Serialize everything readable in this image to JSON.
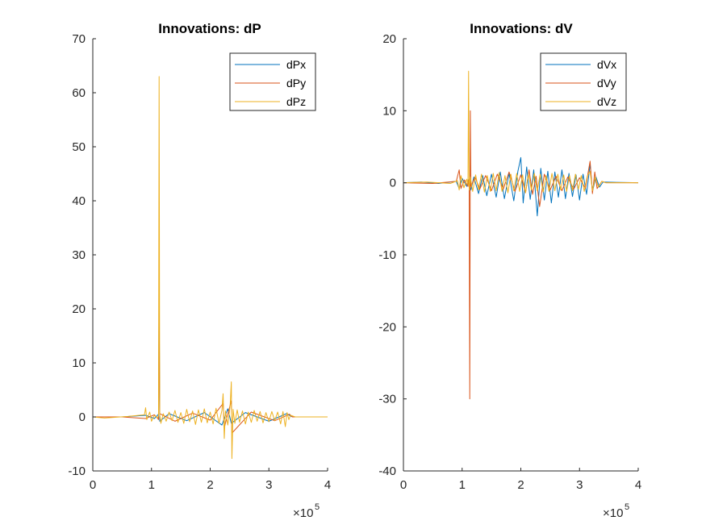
{
  "chart_data": [
    {
      "type": "line",
      "title": "Innovations: dP",
      "xlabel": "",
      "ylabel": "",
      "xlim": [
        0,
        400000
      ],
      "ylim": [
        -10,
        70
      ],
      "x_ticks": [
        0,
        100000,
        200000,
        300000,
        400000
      ],
      "x_tick_labels": [
        "0",
        "1",
        "2",
        "3",
        "4"
      ],
      "y_ticks": [
        -10,
        0,
        10,
        20,
        30,
        40,
        50,
        60,
        70
      ],
      "y_tick_labels": [
        "-10",
        "0",
        "10",
        "20",
        "30",
        "40",
        "50",
        "60",
        "70"
      ],
      "x_exponent_base": "×10",
      "x_exponent": "5",
      "legend_position": "top-right",
      "grid": false,
      "series": [
        {
          "name": "dPx",
          "color": "#0072BD",
          "points": [
            [
              0,
              0
            ],
            [
              50000,
              0
            ],
            [
              90000,
              0.3
            ],
            [
              105000,
              -0.3
            ],
            [
              112000,
              0.5
            ],
            [
              113000,
              25
            ],
            [
              114000,
              -0.8
            ],
            [
              130000,
              0.6
            ],
            [
              160000,
              -0.7
            ],
            [
              190000,
              0.8
            ],
            [
              220000,
              -1.5
            ],
            [
              230000,
              1.5
            ],
            [
              236000,
              -1.2
            ],
            [
              260000,
              0.8
            ],
            [
              300000,
              -0.8
            ],
            [
              330000,
              0.6
            ],
            [
              340000,
              0
            ],
            [
              400000,
              0
            ]
          ]
        },
        {
          "name": "dPy",
          "color": "#D95319",
          "points": [
            [
              0,
              0
            ],
            [
              50000,
              0
            ],
            [
              90000,
              -0.3
            ],
            [
              105000,
              0.4
            ],
            [
              112000,
              -0.5
            ],
            [
              113000,
              20
            ],
            [
              114000,
              0.6
            ],
            [
              140000,
              -0.8
            ],
            [
              170000,
              0.7
            ],
            [
              200000,
              -0.6
            ],
            [
              222000,
              2.5
            ],
            [
              224000,
              -2
            ],
            [
              236000,
              3
            ],
            [
              237000,
              -3
            ],
            [
              270000,
              0.9
            ],
            [
              310000,
              -0.7
            ],
            [
              335000,
              0.5
            ],
            [
              340000,
              0
            ],
            [
              400000,
              0
            ]
          ]
        },
        {
          "name": "dPz",
          "color": "#EDB120",
          "points": [
            [
              0,
              0
            ],
            [
              20000,
              -0.2
            ],
            [
              60000,
              0.1
            ],
            [
              88000,
              0.4
            ],
            [
              90000,
              1.7
            ],
            [
              92000,
              -0.5
            ],
            [
              97000,
              0.9
            ],
            [
              100000,
              -0.8
            ],
            [
              105000,
              0.3
            ],
            [
              110000,
              -0.2
            ],
            [
              112000,
              0.2
            ],
            [
              113000,
              63
            ],
            [
              114000,
              0.5
            ],
            [
              116000,
              -1.2
            ],
            [
              120000,
              0.6
            ],
            [
              125000,
              -0.8
            ],
            [
              130000,
              0.9
            ],
            [
              135000,
              -0.7
            ],
            [
              140000,
              1.2
            ],
            [
              145000,
              -1
            ],
            [
              150000,
              0.8
            ],
            [
              155000,
              -1.2
            ],
            [
              160000,
              1.4
            ],
            [
              165000,
              -0.9
            ],
            [
              170000,
              1.1
            ],
            [
              175000,
              -1.4
            ],
            [
              180000,
              1.3
            ],
            [
              185000,
              -1
            ],
            [
              190000,
              1.5
            ],
            [
              195000,
              -1.1
            ],
            [
              200000,
              0.9
            ],
            [
              205000,
              -1.3
            ],
            [
              210000,
              1.6
            ],
            [
              215000,
              -1.2
            ],
            [
              220000,
              1.2
            ],
            [
              222000,
              4.3
            ],
            [
              224000,
              -4
            ],
            [
              226000,
              1.1
            ],
            [
              230000,
              -1.5
            ],
            [
              234000,
              2.1
            ],
            [
              236000,
              6.5
            ],
            [
              237000,
              -7.7
            ],
            [
              239000,
              1.4
            ],
            [
              242000,
              -1.2
            ],
            [
              246000,
              1.3
            ],
            [
              250000,
              -1
            ],
            [
              255000,
              1.1
            ],
            [
              260000,
              -1.3
            ],
            [
              265000,
              0.9
            ],
            [
              270000,
              -1
            ],
            [
              275000,
              1.2
            ],
            [
              280000,
              -0.8
            ],
            [
              285000,
              1
            ],
            [
              290000,
              -1.1
            ],
            [
              295000,
              0.8
            ],
            [
              300000,
              -0.9
            ],
            [
              305000,
              1
            ],
            [
              310000,
              -0.7
            ],
            [
              315000,
              0.9
            ],
            [
              320000,
              -1.3
            ],
            [
              324000,
              1
            ],
            [
              328000,
              -1.8
            ],
            [
              331000,
              0.8
            ],
            [
              334000,
              -0.5
            ],
            [
              337000,
              0.3
            ],
            [
              345000,
              0
            ],
            [
              400000,
              0
            ]
          ]
        }
      ]
    },
    {
      "type": "line",
      "title": "Innovations: dV",
      "xlabel": "",
      "ylabel": "",
      "xlim": [
        0,
        400000
      ],
      "ylim": [
        -40,
        20
      ],
      "x_ticks": [
        0,
        100000,
        200000,
        300000,
        400000
      ],
      "x_tick_labels": [
        "0",
        "1",
        "2",
        "3",
        "4"
      ],
      "y_ticks": [
        -40,
        -30,
        -20,
        -10,
        0,
        10,
        20
      ],
      "y_tick_labels": [
        "-40",
        "-30",
        "-20",
        "-10",
        "0",
        "10",
        "20"
      ],
      "x_exponent_base": "×10",
      "x_exponent": "5",
      "legend_position": "top-right",
      "grid": false,
      "series": [
        {
          "name": "dVx",
          "color": "#0072BD",
          "points": [
            [
              0,
              0
            ],
            [
              30000,
              0.1
            ],
            [
              60000,
              -0.1
            ],
            [
              90000,
              0.2
            ],
            [
              95000,
              -0.8
            ],
            [
              100000,
              0.6
            ],
            [
              108000,
              -0.5
            ],
            [
              112000,
              0.5
            ],
            [
              115000,
              -1
            ],
            [
              120000,
              0.8
            ],
            [
              128000,
              -1.5
            ],
            [
              135000,
              1
            ],
            [
              142000,
              -1.8
            ],
            [
              150000,
              1.2
            ],
            [
              158000,
              -2
            ],
            [
              165000,
              1.5
            ],
            [
              172000,
              -2.2
            ],
            [
              180000,
              1.3
            ],
            [
              188000,
              -2.5
            ],
            [
              195000,
              1.6
            ],
            [
              200000,
              3.5
            ],
            [
              204000,
              -2.8
            ],
            [
              210000,
              2.2
            ],
            [
              216000,
              -2.3
            ],
            [
              222000,
              1.8
            ],
            [
              228000,
              -4.6
            ],
            [
              234000,
              2
            ],
            [
              240000,
              -2.4
            ],
            [
              246000,
              1.6
            ],
            [
              252000,
              -2.8
            ],
            [
              258000,
              1.5
            ],
            [
              264000,
              -2
            ],
            [
              270000,
              1.8
            ],
            [
              276000,
              -2.2
            ],
            [
              282000,
              1.3
            ],
            [
              288000,
              -1.9
            ],
            [
              294000,
              1.1
            ],
            [
              300000,
              -2.4
            ],
            [
              306000,
              1.2
            ],
            [
              312000,
              -1.6
            ],
            [
              318000,
              2.6
            ],
            [
              322000,
              -1.2
            ],
            [
              328000,
              0.8
            ],
            [
              334000,
              -0.6
            ],
            [
              340000,
              0.1
            ],
            [
              400000,
              0
            ]
          ]
        },
        {
          "name": "dVy",
          "color": "#D95319",
          "points": [
            [
              0,
              0
            ],
            [
              50000,
              -0.1
            ],
            [
              90000,
              0.2
            ],
            [
              95000,
              1.8
            ],
            [
              98000,
              -0.8
            ],
            [
              104000,
              0.4
            ],
            [
              110000,
              -0.5
            ],
            [
              112000,
              0.5
            ],
            [
              113000,
              -30
            ],
            [
              114000,
              10
            ],
            [
              115000,
              -0.5
            ],
            [
              122000,
              0.8
            ],
            [
              130000,
              -0.9
            ],
            [
              140000,
              1
            ],
            [
              150000,
              -1.1
            ],
            [
              160000,
              1.2
            ],
            [
              170000,
              -0.9
            ],
            [
              180000,
              1.5
            ],
            [
              190000,
              -1.2
            ],
            [
              200000,
              1.1
            ],
            [
              208000,
              -1.4
            ],
            [
              214000,
              1.8
            ],
            [
              220000,
              -1.6
            ],
            [
              226000,
              0.9
            ],
            [
              232000,
              -3.3
            ],
            [
              240000,
              1.2
            ],
            [
              250000,
              -1
            ],
            [
              260000,
              0.9
            ],
            [
              270000,
              -1.1
            ],
            [
              280000,
              0.8
            ],
            [
              290000,
              -0.9
            ],
            [
              300000,
              0.7
            ],
            [
              310000,
              -0.8
            ],
            [
              318000,
              3
            ],
            [
              322000,
              -1.5
            ],
            [
              326000,
              1.5
            ],
            [
              330000,
              -0.8
            ],
            [
              338000,
              0.2
            ],
            [
              345000,
              0
            ],
            [
              400000,
              0
            ]
          ]
        },
        {
          "name": "dVz",
          "color": "#EDB120",
          "points": [
            [
              0,
              0
            ],
            [
              40000,
              0.1
            ],
            [
              80000,
              -0.1
            ],
            [
              92000,
              0.3
            ],
            [
              95000,
              -1
            ],
            [
              98000,
              1
            ],
            [
              103000,
              -0.7
            ],
            [
              108000,
              0.5
            ],
            [
              110000,
              -0.3
            ],
            [
              111000,
              15.5
            ],
            [
              112000,
              -1
            ],
            [
              114000,
              0.8
            ],
            [
              118000,
              -1.2
            ],
            [
              123000,
              1.1
            ],
            [
              128000,
              -1
            ],
            [
              133000,
              1.2
            ],
            [
              138000,
              -1.3
            ],
            [
              143000,
              1
            ],
            [
              148000,
              -1.2
            ],
            [
              153000,
              1.3
            ],
            [
              158000,
              -1.1
            ],
            [
              163000,
              1.4
            ],
            [
              168000,
              -1.2
            ],
            [
              173000,
              1
            ],
            [
              178000,
              -1.4
            ],
            [
              183000,
              1.2
            ],
            [
              188000,
              -1.1
            ],
            [
              193000,
              1.3
            ],
            [
              198000,
              -1.2
            ],
            [
              203000,
              1.1
            ],
            [
              208000,
              -1.4
            ],
            [
              213000,
              1.2
            ],
            [
              218000,
              -1
            ],
            [
              223000,
              1.3
            ],
            [
              228000,
              -1.1
            ],
            [
              233000,
              1.2
            ],
            [
              238000,
              -1.3
            ],
            [
              243000,
              1
            ],
            [
              248000,
              -1.2
            ],
            [
              253000,
              1.3
            ],
            [
              258000,
              -1.1
            ],
            [
              263000,
              1.2
            ],
            [
              268000,
              -1
            ],
            [
              273000,
              1.1
            ],
            [
              278000,
              -1.2
            ],
            [
              283000,
              1
            ],
            [
              288000,
              -1.1
            ],
            [
              293000,
              1.2
            ],
            [
              298000,
              -0.9
            ],
            [
              303000,
              1
            ],
            [
              308000,
              -1.2
            ],
            [
              313000,
              0.9
            ],
            [
              318000,
              1.6
            ],
            [
              322000,
              -1.1
            ],
            [
              327000,
              0.8
            ],
            [
              332000,
              -0.6
            ],
            [
              338000,
              0.2
            ],
            [
              345000,
              0
            ],
            [
              400000,
              0
            ]
          ]
        }
      ]
    }
  ]
}
